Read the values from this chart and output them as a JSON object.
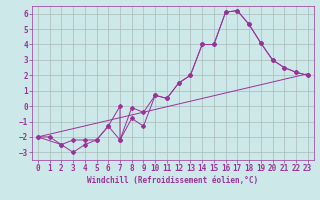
{
  "xlabel": "Windchill (Refroidissement éolien,°C)",
  "xlim": [
    -0.5,
    23.5
  ],
  "ylim": [
    -3.5,
    6.5
  ],
  "xticks": [
    0,
    1,
    2,
    3,
    4,
    5,
    6,
    7,
    8,
    9,
    10,
    11,
    12,
    13,
    14,
    15,
    16,
    17,
    18,
    19,
    20,
    21,
    22,
    23
  ],
  "yticks": [
    -3,
    -2,
    -1,
    0,
    1,
    2,
    3,
    4,
    5,
    6
  ],
  "bg_color": "#cce8e8",
  "grid_color": "#aabbbb",
  "line_color": "#993399",
  "line1_x": [
    0,
    1,
    2,
    3,
    4,
    5,
    6,
    7,
    7,
    8,
    9,
    10,
    11,
    12,
    13,
    14,
    15,
    16,
    17,
    18,
    19,
    20,
    21,
    22,
    23
  ],
  "line1_y": [
    -2,
    -2,
    -2.5,
    -3,
    -2.5,
    -2.2,
    -1.3,
    0.0,
    -2.2,
    -0.1,
    -0.4,
    0.7,
    0.5,
    1.5,
    2.0,
    4.0,
    4.0,
    6.1,
    6.2,
    5.3,
    4.1,
    3.0,
    2.5,
    2.2,
    2.0
  ],
  "line2_x": [
    0,
    23
  ],
  "line2_y": [
    -2.0,
    2.1
  ],
  "line3_x": [
    0,
    2,
    3,
    4,
    5,
    6,
    7,
    8,
    9,
    10,
    11,
    12,
    13,
    14,
    15,
    16,
    17,
    18,
    19,
    20,
    21,
    22,
    23
  ],
  "line3_y": [
    -2.0,
    -2.5,
    -2.2,
    -2.2,
    -2.2,
    -1.3,
    -2.2,
    -0.8,
    -1.3,
    0.7,
    0.5,
    1.5,
    2.0,
    4.0,
    4.0,
    6.1,
    6.2,
    5.3,
    4.1,
    3.0,
    2.5,
    2.2,
    2.0
  ],
  "tick_fontsize": 5.5,
  "xlabel_fontsize": 5.5
}
